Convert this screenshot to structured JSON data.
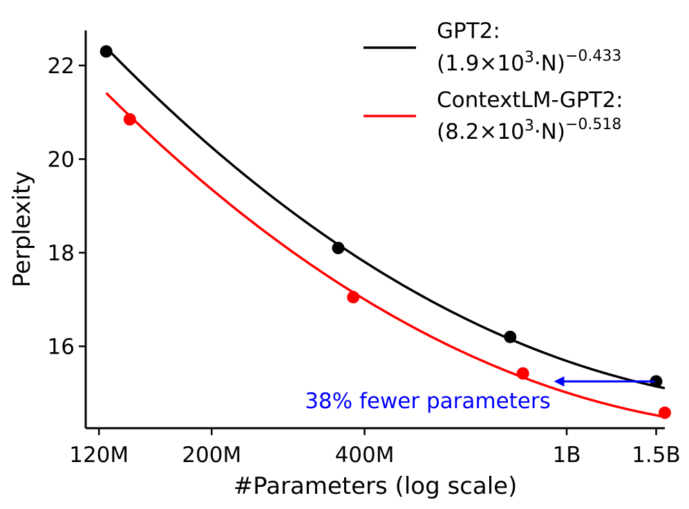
{
  "chart_data": {
    "type": "line",
    "xscale": "log",
    "xlabel": "#Parameters (log scale)",
    "ylabel": "Perplexity",
    "xlim": [
      113000000,
      1560000000
    ],
    "ylim": [
      14.25,
      22.75
    ],
    "x_ticks": [
      {
        "value": 120000000,
        "label": "120M"
      },
      {
        "value": 200000000,
        "label": "200M"
      },
      {
        "value": 400000000,
        "label": "400M"
      },
      {
        "value": 1000000000,
        "label": "1B"
      },
      {
        "value": 1500000000,
        "label": "1.5B"
      }
    ],
    "y_ticks": [
      {
        "value": 16,
        "label": "16"
      },
      {
        "value": 18,
        "label": "18"
      },
      {
        "value": 20,
        "label": "20"
      },
      {
        "value": 22,
        "label": "22"
      }
    ],
    "series": [
      {
        "name": "GPT2",
        "color": "#000000",
        "fit": {
          "coef": 1900,
          "exp": -0.433
        },
        "fit_range": [
          124000000,
          1560000000
        ],
        "legend_title": "GPT2:",
        "legend_formula": "(1.9×10",
        "legend_sup": "3",
        "legend_tail": "·N)",
        "legend_exp": "−0.433",
        "points": [
          {
            "x": 124000000,
            "y": 22.3
          },
          {
            "x": 355000000,
            "y": 18.1
          },
          {
            "x": 774000000,
            "y": 16.2
          },
          {
            "x": 1500000000,
            "y": 15.25
          }
        ]
      },
      {
        "name": "ContextLM-GPT2",
        "color": "#ff0000",
        "fit": {
          "coef": 8200,
          "exp": -0.518
        },
        "fit_range": [
          124000000,
          1560000000
        ],
        "legend_title": "ContextLM-GPT2:",
        "legend_formula": "(8.2×10",
        "legend_sup": "3",
        "legend_tail": "·N)",
        "legend_exp": "−0.518",
        "points": [
          {
            "x": 138000000,
            "y": 20.85
          },
          {
            "x": 380000000,
            "y": 17.05
          },
          {
            "x": 820000000,
            "y": 15.42
          },
          {
            "x": 1560000000,
            "y": 14.58
          }
        ]
      }
    ],
    "annotation": {
      "text": "38% fewer parameters",
      "color": "#0000ff",
      "arrow_from": {
        "x": 1500000000,
        "y": 15.25
      },
      "arrow_to": {
        "x": 935000000,
        "y": 15.25
      }
    },
    "legend_position": "top-right"
  }
}
